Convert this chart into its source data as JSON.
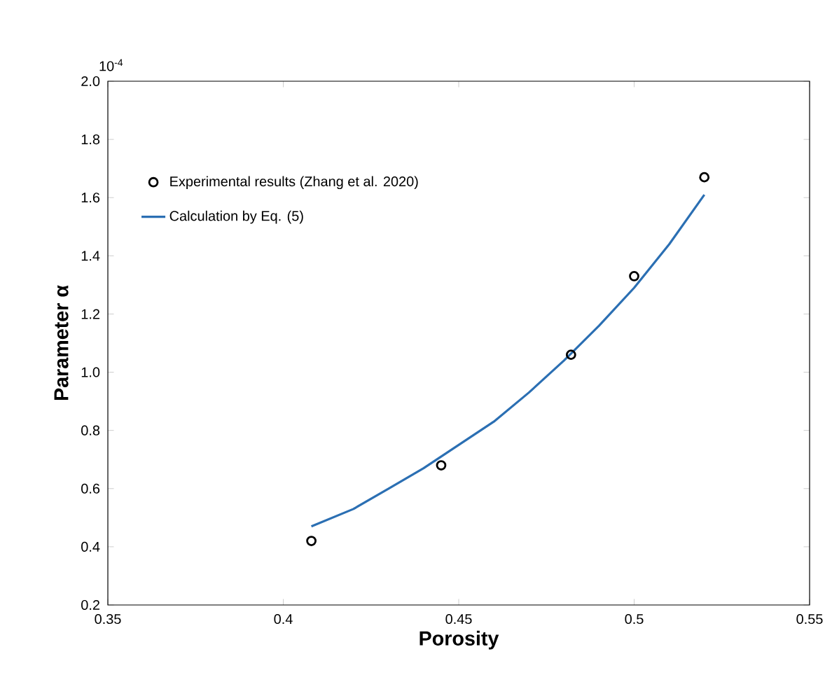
{
  "chart_data": {
    "type": "scatter",
    "xlabel": "Porosity",
    "ylabel": "Parameter α",
    "annotations": [
      "10$^{-4}$"
    ],
    "series": [
      {
        "name": "Experimental results (Zhang et al. 2020)",
        "color": "#000000",
        "marker": "circle",
        "x": [
          0.408,
          0.445,
          0.482,
          0.5,
          0.52
        ],
        "values": [
          0.42,
          0.68,
          1.06,
          1.33,
          1.67
        ]
      },
      {
        "name": "Calculation by Eq. (5)",
        "type": "line",
        "color": "#2b6fb3",
        "marker": "none",
        "line_style": "solid",
        "x": [
          0.408,
          0.42,
          0.43,
          0.44,
          0.45,
          0.46,
          0.47,
          0.48,
          0.49,
          0.5,
          0.51,
          0.52
        ],
        "values": [
          0.47,
          0.53,
          0.6,
          0.67,
          0.75,
          0.83,
          0.93,
          1.04,
          1.16,
          1.29,
          1.44,
          1.61
        ]
      }
    ],
    "xlim": [
      0.35,
      0.55
    ],
    "ylim": [
      0.2,
      2.0
    ],
    "xticks": [
      0.35,
      0.4,
      0.45,
      0.5,
      0.55
    ],
    "yticks": [
      0.2,
      0.4,
      0.6,
      0.8,
      {
        "value": 1,
        "label": "1.0"
      },
      1.2,
      1.4,
      1.6,
      1.8,
      {
        "value": 2,
        "label": "2.0"
      }
    ],
    "grid": false,
    "legend": "top left"
  }
}
